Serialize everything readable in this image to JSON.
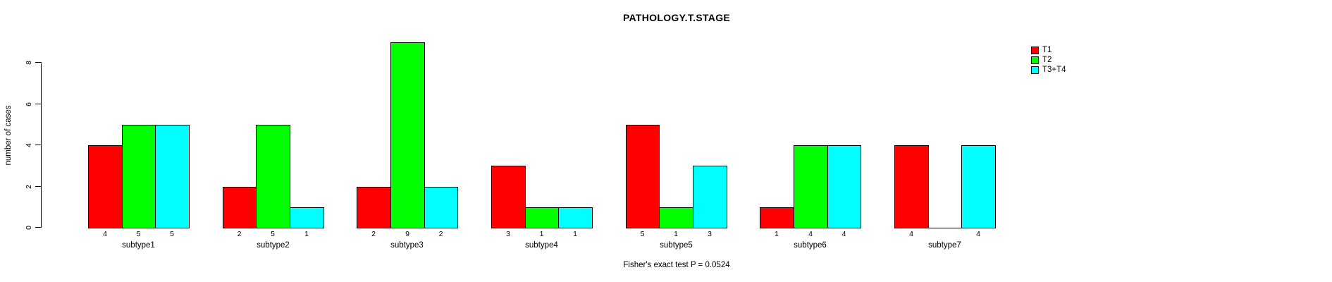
{
  "chart_data": {
    "type": "bar",
    "title": "PATHOLOGY.T.STAGE",
    "xlabel": "",
    "ylabel": "number of cases",
    "categories": [
      "subtype1",
      "subtype2",
      "subtype3",
      "subtype4",
      "subtype5",
      "subtype6",
      "subtype7"
    ],
    "series": [
      {
        "name": "T1",
        "color": "#ff0000",
        "values": [
          4,
          2,
          2,
          3,
          5,
          1,
          4
        ]
      },
      {
        "name": "T2",
        "color": "#00ff00",
        "values": [
          5,
          5,
          9,
          1,
          1,
          4,
          0
        ]
      },
      {
        "name": "T3+T4",
        "color": "#00ffff",
        "values": [
          5,
          1,
          2,
          1,
          3,
          4,
          4
        ]
      }
    ],
    "bar_count_labels": [
      [
        "4",
        "5",
        "5"
      ],
      [
        "2",
        "5",
        "1"
      ],
      [
        "2",
        "9",
        "2"
      ],
      [
        "3",
        "1",
        "1"
      ],
      [
        "5",
        "1",
        "3"
      ],
      [
        "1",
        "4",
        "4"
      ],
      [
        "4",
        "",
        "4"
      ]
    ],
    "y_ticks": [
      0,
      2,
      4,
      6,
      8
    ],
    "ylim": [
      0,
      9
    ],
    "grid": false,
    "legend_position": "top-right-outside",
    "annotation": "Fisher's exact test P = 0.0524",
    "bar_border_color": "#000000",
    "background_color": "#ffffff"
  }
}
